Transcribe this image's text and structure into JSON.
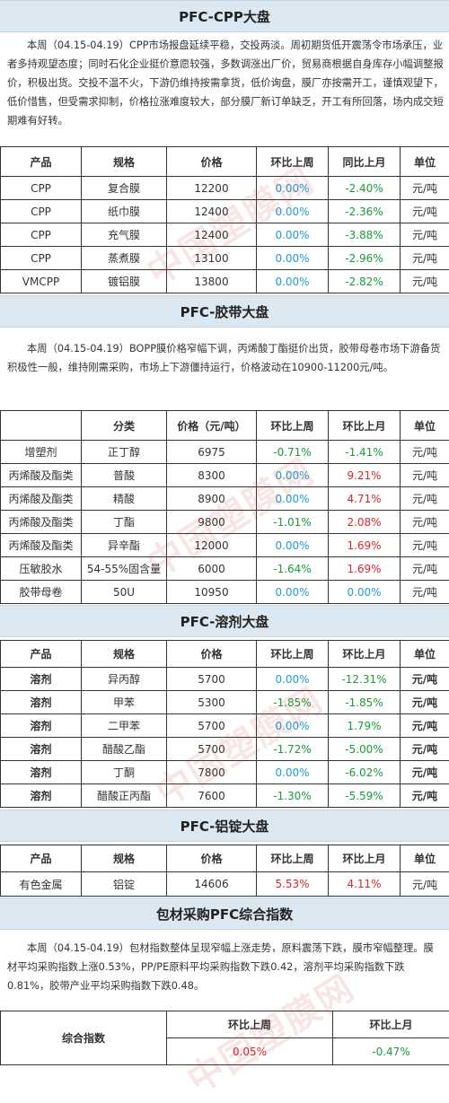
{
  "cpp": {
    "title": "PFC-CPP大盘",
    "paragraph": "本周（04.15-04.19）CPP市场报盘延续平稳，交投两淡。周初期货低开震荡令市场承压，业者多持观望态度；同时石化企业挺价意愿较强，多数调涨出厂价，贸易商根据自身库存小幅调整报价，积极出货。交投不温不火，下游仍维持按需拿货，低价询盘，膜厂亦按需开工，谨慎观望下，低价惜售，但受需求抑制，价格拉涨难度较大，部分膜厂新订单缺乏，开工有所回落，场内成交短期难有好转。",
    "headers": [
      "产品",
      "规格",
      "价格",
      "环比上周",
      "同比上月",
      "单位"
    ],
    "rows": [
      [
        "CPP",
        "复合膜",
        "12200",
        "0.00%",
        "-2.40%",
        "元/吨"
      ],
      [
        "CPP",
        "纸巾膜",
        "12400",
        "0.00%",
        "-2.36%",
        "元/吨"
      ],
      [
        "CPP",
        "充气膜",
        "12400",
        "0.00%",
        "-3.88%",
        "元/吨"
      ],
      [
        "CPP",
        "蒸煮膜",
        "13100",
        "0.00%",
        "-2.96%",
        "元/吨"
      ],
      [
        "VMCPP",
        "镀铝膜",
        "13800",
        "0.00%",
        "-2.82%",
        "元/吨"
      ]
    ]
  },
  "tape": {
    "title": "PFC-胶带大盘",
    "paragraph": "本周（04.15-04.19）BOPP膜价格窄幅下调，丙烯酸丁酯挺价出货，胶带母卷市场下游备货积极性一般，维持刚需采购，市场上下游僵持运行，价格波动在10900-11200元/吨。",
    "headers": [
      "",
      "分类",
      "价格（元/吨）",
      "环比上周",
      "环比上月",
      "单位"
    ],
    "rows": [
      [
        "增塑剂",
        "正丁醇",
        "6975",
        "-0.71%",
        "-1.41%",
        "元/吨"
      ],
      [
        "丙烯酸及酯类",
        "普酸",
        "8300",
        "0.00%",
        "9.21%",
        "元/吨"
      ],
      [
        "丙烯酸及酯类",
        "精酸",
        "8900",
        "0.00%",
        "4.71%",
        "元/吨"
      ],
      [
        "丙烯酸及酯类",
        "丁酯",
        "9800",
        "-1.01%",
        "2.08%",
        "元/吨"
      ],
      [
        "丙烯酸及酯类",
        "异辛酯",
        "12000",
        "0.00%",
        "1.69%",
        "元/吨"
      ],
      [
        "压敏胶水",
        "54-55%固含量",
        "6000",
        "-1.64%",
        "1.69%",
        "元/吨"
      ],
      [
        "胶带母卷",
        "50U",
        "10950",
        "0.00%",
        "0.00%",
        "元/吨"
      ]
    ]
  },
  "solvent": {
    "title": "PFC-溶剂大盘",
    "headers": [
      "产品",
      "规格",
      "价格",
      "环比上周",
      "环比上月",
      "单位"
    ],
    "rows": [
      [
        "溶剂",
        "异丙醇",
        "5700",
        "0.00%",
        "-12.31%",
        "元/吨"
      ],
      [
        "溶剂",
        "甲苯",
        "5300",
        "-1.85%",
        "-1.85%",
        "元/吨"
      ],
      [
        "溶剂",
        "二甲苯",
        "5700",
        "0.00%",
        "1.79%",
        "元/吨"
      ],
      [
        "溶剂",
        "醋酸乙酯",
        "5700",
        "-1.72%",
        "-5.00%",
        "元/吨"
      ],
      [
        "溶剂",
        "丁酮",
        "7800",
        "0.00%",
        "-6.02%",
        "元/吨"
      ],
      [
        "溶剂",
        "醋酸正丙酯",
        "7600",
        "-1.30%",
        "-5.59%",
        "元/吨"
      ]
    ]
  },
  "ingot": {
    "title": "PFC-铝锭大盘",
    "headers": [
      "产品",
      "规格",
      "价格",
      "环比上周",
      "环比上月",
      "单位"
    ],
    "rows": [
      [
        "有色金属",
        "铝锭",
        "14606",
        "5.53%",
        "4.11%",
        "元/吨"
      ]
    ]
  },
  "index": {
    "title": "包材采购PFC综合指数",
    "paragraph": "本周（04.15-04.19）包材指数整体呈现窄幅上涨走势，原料震荡下跌，膜市窄幅整理。膜材平均采购指数上涨0.53%，PP/PE原料平均采购指数下跌0.42，溶剂平均采购指数下跌0.81%，胶带产业平均采购指数下跌0.48。",
    "label": "综合指数",
    "headers": [
      "环比上周",
      "环比上月"
    ],
    "values": [
      "0.05%",
      "-0.47%"
    ]
  },
  "watermark": "中国塑膜网",
  "colors": {
    "header_bg": "#dbe7f1",
    "zero": "#1e9bd7",
    "negative": "#1a9b3a",
    "positive": "#d9262b"
  }
}
